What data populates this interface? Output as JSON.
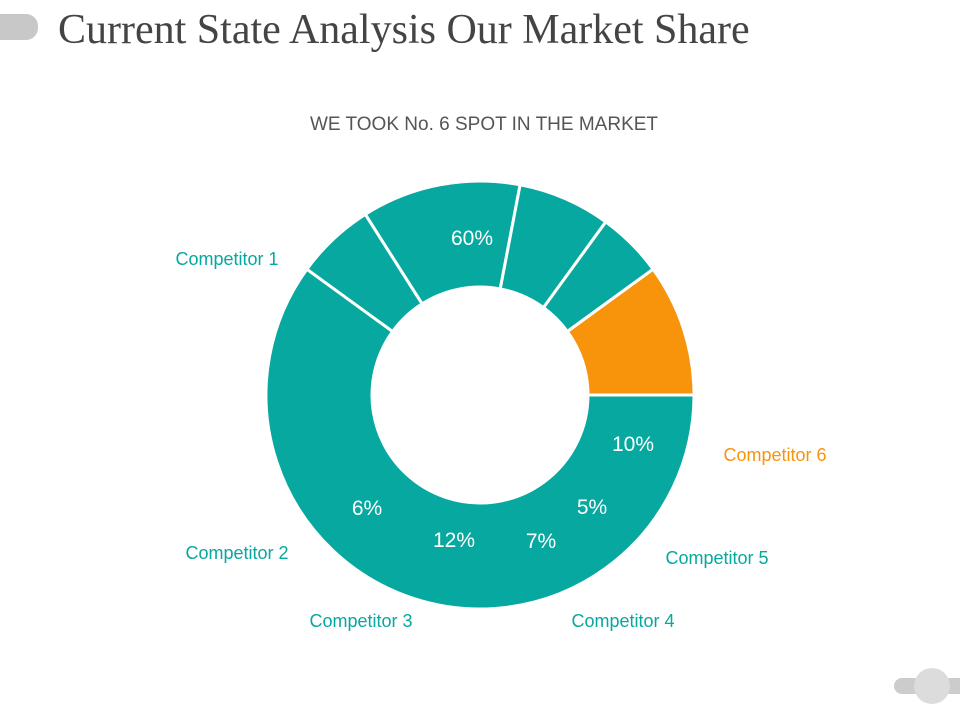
{
  "slide": {
    "title": "Current State Analysis Our Market Share"
  },
  "colors": {
    "primary": "#07A89F",
    "highlight": "#F7940B"
  },
  "chart_data": {
    "type": "pie",
    "subtitle": "WE TOOK No. 6 SPOT IN THE MARKET",
    "categories": [
      "Competitor 1",
      "Competitor 2",
      "Competitor 3",
      "Competitor 4",
      "Competitor 5",
      "Competitor 6"
    ],
    "values": [
      60,
      6,
      12,
      7,
      5,
      10
    ],
    "value_labels": [
      "60%",
      "6%",
      "12%",
      "7%",
      "5%",
      "10%"
    ],
    "highlight_category": "Competitor 6",
    "donut": true
  }
}
